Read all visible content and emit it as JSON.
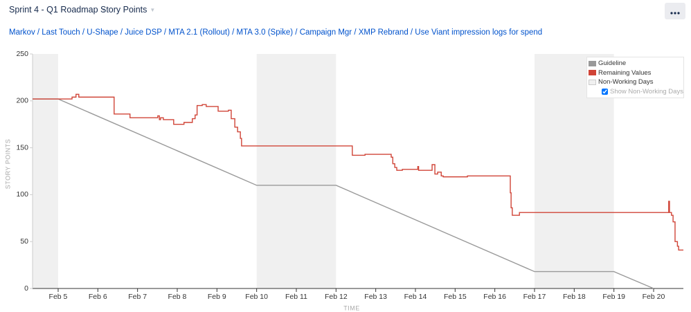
{
  "header": {
    "board": "Sprint 4 - Q1 Roadmap",
    "metric": "Story Points"
  },
  "filter_path": "Markov / Last Touch / U-Shape / Juice DSP / MTA 2.1 (Rollout) / MTA 3.0 (Spike) / Campaign Mgr / XMP Rebrand / Use Viant impression logs for spend",
  "chart_data": {
    "type": "line",
    "y_label": "STORY POINTS",
    "x_label": "TIME",
    "xlim": [
      4.355,
      20.75
    ],
    "ylim": [
      0,
      250
    ],
    "yticks": [
      0,
      50,
      100,
      150,
      200,
      250
    ],
    "xticks": [
      {
        "value": 5,
        "label": "Feb 5"
      },
      {
        "value": 6,
        "label": "Feb 6"
      },
      {
        "value": 7,
        "label": "Feb 7"
      },
      {
        "value": 8,
        "label": "Feb 8"
      },
      {
        "value": 9,
        "label": "Feb 9"
      },
      {
        "value": 10,
        "label": "Feb 10"
      },
      {
        "value": 11,
        "label": "Feb 11"
      },
      {
        "value": 12,
        "label": "Feb 12"
      },
      {
        "value": 13,
        "label": "Feb 13"
      },
      {
        "value": 14,
        "label": "Feb 14"
      },
      {
        "value": 15,
        "label": "Feb 15"
      },
      {
        "value": 16,
        "label": "Feb 16"
      },
      {
        "value": 17,
        "label": "Feb 17"
      },
      {
        "value": 18,
        "label": "Feb 18"
      },
      {
        "value": 19,
        "label": "Feb 19"
      },
      {
        "value": 20,
        "label": "Feb 20"
      }
    ],
    "non_working": {
      "name": "Non-Working Days",
      "color": "#f0f0f0",
      "ranges": [
        [
          4.355,
          5
        ],
        [
          10,
          12
        ],
        [
          17,
          19
        ]
      ],
      "toggle_label": "Show Non-Working Days",
      "shown": true
    },
    "series": [
      {
        "name": "Guideline",
        "color": "#999999",
        "x": [
          4.355,
          5,
          10,
          12,
          17,
          19,
          20
        ],
        "values": [
          202,
          202,
          110,
          110,
          18,
          18,
          0
        ]
      },
      {
        "name": "Remaining Values",
        "color": "#d04437",
        "step": "after",
        "x": [
          4.355,
          5.35,
          5.45,
          5.52,
          6.41,
          6.81,
          7.51,
          7.55,
          7.58,
          7.65,
          7.91,
          8.17,
          8.38,
          8.45,
          8.5,
          8.63,
          8.73,
          9.03,
          9.29,
          9.36,
          9.45,
          9.52,
          9.59,
          9.62,
          12.41,
          12.73,
          13.39,
          13.43,
          13.48,
          13.53,
          13.67,
          14.06,
          14.08,
          14.42,
          14.49,
          14.56,
          14.65,
          14.7,
          15.31,
          16.39,
          16.41,
          16.44,
          16.62,
          20.38,
          20.4,
          20.45,
          20.49,
          20.54,
          20.6,
          20.63,
          20.67,
          20.75
        ],
        "values": [
          202,
          204,
          207,
          204,
          186,
          182,
          184,
          180,
          182,
          180,
          175,
          177,
          181,
          185,
          195,
          196,
          194,
          189,
          190,
          181,
          172,
          167,
          160,
          152,
          142,
          143,
          140,
          133,
          129,
          126,
          127,
          130,
          126,
          132,
          122,
          124,
          120,
          119,
          120,
          102,
          86,
          78,
          81,
          93,
          81,
          78,
          71,
          50,
          45,
          41,
          41,
          41
        ]
      }
    ]
  }
}
